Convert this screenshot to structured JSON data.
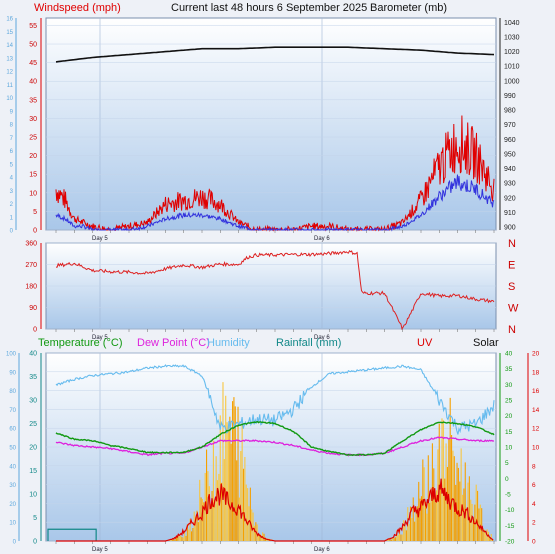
{
  "header": {
    "left": "Windspeed (mph)",
    "center": "Current last 48 hours 6 September 2025",
    "right": "Barometer (mb)"
  },
  "colors": {
    "windspeed": "#e00000",
    "windavg": "#3333dd",
    "barometer": "#111111",
    "direction": "#dd2222",
    "temperature": "#119911",
    "dewpoint": "#dd22dd",
    "humidity": "#66bbee",
    "rainfall": "#118888",
    "uv": "#dd0000",
    "solar": "#f5a000",
    "plot_bg_top": "#ffffff",
    "plot_bg_bottom": "#a9c7e9"
  },
  "chart_data": [
    {
      "type": "line",
      "title": "Current last 48 hours 6 September 2025",
      "ylabel_left": "Windspeed (mph)",
      "ylabel_right": "Barometer (mb)",
      "x_ticks": [
        "Day 5",
        "Day 6"
      ],
      "ylim_left": [
        0,
        57
      ],
      "yticks_left": [
        0,
        5,
        10,
        15,
        20,
        25,
        30,
        35,
        40,
        45,
        50,
        55
      ],
      "ylim_right": [
        898,
        1043
      ],
      "yticks_right": [
        900,
        910,
        920,
        930,
        940,
        950,
        960,
        970,
        980,
        990,
        1000,
        1010,
        1020,
        1030,
        1040
      ],
      "ylim_far_left": [
        0,
        16
      ],
      "yticks_far_left": [
        0,
        1,
        2,
        3,
        4,
        5,
        6,
        7,
        8,
        9,
        10,
        11,
        12,
        13,
        14,
        15,
        16
      ],
      "series": [
        {
          "name": "Barometer",
          "hours": [
            0,
            4,
            8,
            12,
            16,
            20,
            24,
            28,
            32,
            36,
            40,
            44,
            48
          ],
          "values": [
            1013,
            1016,
            1018,
            1020,
            1022,
            1022,
            1023,
            1023,
            1023,
            1022,
            1021,
            1019,
            1018
          ]
        },
        {
          "name": "Windspeed",
          "hours": [
            0,
            1,
            2,
            3,
            4,
            6,
            8,
            10,
            12,
            14,
            16,
            18,
            20,
            22,
            24,
            26,
            28,
            30,
            32,
            34,
            36,
            38,
            40,
            42,
            44,
            46,
            48
          ],
          "values": [
            11,
            8,
            3,
            2,
            1,
            0,
            1,
            2,
            7,
            8,
            9,
            7,
            2,
            0,
            0,
            0,
            1,
            1,
            0,
            0,
            0,
            2,
            8,
            17,
            24,
            20,
            11
          ]
        },
        {
          "name": "Wind average",
          "hours": [
            0,
            1,
            2,
            3,
            4,
            6,
            8,
            10,
            12,
            14,
            16,
            18,
            20,
            22,
            24,
            26,
            28,
            30,
            32,
            34,
            36,
            38,
            40,
            42,
            44,
            46,
            48
          ],
          "values": [
            4,
            3,
            1,
            1,
            0,
            0,
            0,
            1,
            3,
            4,
            4,
            3,
            1,
            0,
            0,
            0,
            0,
            0,
            0,
            0,
            0,
            1,
            4,
            9,
            13,
            11,
            7
          ]
        }
      ]
    },
    {
      "type": "line",
      "x_ticks": [
        "Day 5",
        "Day 6"
      ],
      "ylim": [
        0,
        360
      ],
      "yticks": [
        0,
        90,
        180,
        270,
        360
      ],
      "compass_labels": [
        "N",
        "W",
        "S",
        "E",
        "N"
      ],
      "series": [
        {
          "name": "Wind direction",
          "hours": [
            0,
            2,
            4,
            6,
            8,
            10,
            12,
            14,
            16,
            18,
            20,
            21,
            22,
            24,
            26,
            28,
            30,
            32,
            33,
            33.5,
            34,
            36,
            38,
            40,
            42,
            44,
            46,
            48
          ],
          "values": [
            265,
            275,
            245,
            240,
            238,
            232,
            252,
            268,
            258,
            272,
            270,
            300,
            310,
            310,
            312,
            312,
            316,
            324,
            316,
            150,
            150,
            150,
            0,
            150,
            138,
            140,
            125,
            115
          ]
        }
      ]
    },
    {
      "type": "line",
      "legend": [
        "Temperature (°C)",
        "Dew Point (°C)",
        "Humidity",
        "Rainfall (mm)",
        "UV",
        "Solar"
      ],
      "x_ticks": [
        "Day 5",
        "Day 6"
      ],
      "ylim_left": [
        0,
        100
      ],
      "yticks_left": [
        0,
        10,
        20,
        30,
        40,
        50,
        60,
        70,
        80,
        90,
        100
      ],
      "ylim_inner_left": [
        0,
        40
      ],
      "yticks_inner_left": [
        0,
        5,
        10,
        15,
        20,
        25,
        30,
        35,
        40
      ],
      "ylim_right": [
        -20,
        40
      ],
      "yticks_right": [
        -20,
        -15,
        -10,
        -5,
        0,
        5,
        10,
        15,
        20,
        25,
        30,
        35,
        40
      ],
      "ylim_far_right": [
        0,
        20
      ],
      "yticks_far_right": [
        0,
        2,
        4,
        6,
        8,
        10,
        12,
        14,
        16,
        18,
        20
      ],
      "series": [
        {
          "name": "Humidity",
          "hours": [
            0,
            2,
            4,
            6,
            8,
            10,
            12,
            14,
            16,
            17,
            18,
            20,
            22,
            24,
            26,
            28,
            30,
            32,
            34,
            36,
            38,
            40,
            42,
            44,
            46,
            48
          ],
          "values": [
            83,
            86,
            88,
            89,
            90,
            92,
            93,
            93,
            88,
            75,
            60,
            62,
            65,
            64,
            70,
            82,
            89,
            90,
            91,
            92,
            93,
            91,
            75,
            60,
            62,
            72
          ]
        },
        {
          "name": "Temperature",
          "hours": [
            0,
            2,
            4,
            6,
            8,
            10,
            12,
            14,
            16,
            18,
            20,
            22,
            24,
            26,
            28,
            30,
            32,
            34,
            36,
            38,
            40,
            42,
            44,
            46,
            48
          ],
          "values": [
            14.5,
            12.5,
            12,
            10.5,
            9.5,
            8.3,
            8.2,
            8.3,
            10,
            14,
            17,
            18,
            17.5,
            15,
            10,
            8.5,
            7.5,
            7.5,
            8,
            12,
            15.5,
            18,
            17.5,
            16.5,
            14
          ]
        },
        {
          "name": "Dew Point",
          "hours": [
            0,
            2,
            4,
            6,
            8,
            10,
            12,
            14,
            16,
            18,
            20,
            22,
            24,
            26,
            28,
            30,
            32,
            34,
            36,
            38,
            40,
            42,
            44,
            46,
            48
          ],
          "values": [
            11.5,
            10.5,
            10,
            9.5,
            8.5,
            7.5,
            8,
            8,
            10,
            12,
            12,
            12,
            11.5,
            10.5,
            9,
            8,
            7.5,
            7.5,
            8,
            10,
            12,
            13,
            12.5,
            12,
            12
          ]
        },
        {
          "name": "Rainfall",
          "hours": [
            0,
            4.4,
            4.5,
            48
          ],
          "values": [
            2.5,
            2.5,
            0,
            0
          ]
        },
        {
          "name": "UV",
          "hours": [
            0,
            12,
            13,
            14,
            15,
            16,
            17,
            18,
            19,
            20,
            21,
            22,
            23,
            24,
            36,
            37,
            38,
            39,
            40,
            41,
            42,
            43,
            44,
            45,
            46,
            47,
            48
          ],
          "values": [
            0,
            0,
            0.3,
            1,
            2,
            3,
            4.5,
            5,
            4,
            3.5,
            2,
            0.8,
            0.2,
            0,
            0,
            0.5,
            1.5,
            3,
            3.5,
            4.5,
            5.5,
            4.5,
            3.5,
            3,
            2,
            1,
            0
          ]
        },
        {
          "name": "Solar",
          "hours": [
            0,
            12,
            13,
            14,
            15,
            16,
            17,
            18,
            19,
            20,
            21,
            22,
            23,
            24,
            36,
            37,
            38,
            39,
            40,
            41,
            42,
            43,
            44,
            45,
            46,
            47,
            48
          ],
          "values": [
            0,
            0,
            0.5,
            2,
            6,
            12,
            20,
            27,
            30,
            26,
            14,
            4,
            1,
            0,
            0,
            1,
            4,
            9,
            14,
            18,
            22,
            26,
            20,
            15,
            10,
            4,
            0
          ]
        }
      ]
    }
  ]
}
